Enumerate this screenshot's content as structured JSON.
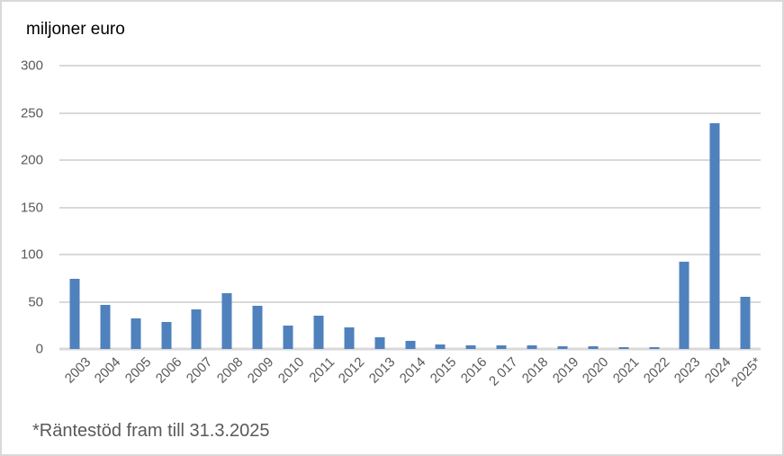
{
  "chart_data": {
    "type": "bar",
    "title": "miljoner euro",
    "categories": [
      "2003",
      "2004",
      "2005",
      "2006",
      "2007",
      "2008",
      "2009",
      "2010",
      "2011",
      "2012",
      "2013",
      "2014",
      "2015",
      "2016",
      "2 017",
      "2018",
      "2019",
      "2020",
      "2021",
      "2022",
      "2023",
      "2024",
      "2025*"
    ],
    "values": [
      74,
      47,
      32,
      29,
      42,
      59,
      46,
      25,
      35,
      23,
      12,
      9,
      5,
      4,
      4,
      4,
      3,
      3,
      2,
      2,
      92,
      239,
      55
    ],
    "xlabel": "",
    "ylabel": "miljoner euro",
    "ylim": [
      0,
      300
    ],
    "yticks": [
      0,
      50,
      100,
      150,
      200,
      250,
      300
    ],
    "grid": true,
    "legend": false,
    "bar_color": "#4f81bd",
    "gridline_color": "#d9d9d9",
    "axis_label_color": "#595959",
    "footnote": "*Räntestöd fram till 31.3.2025"
  }
}
